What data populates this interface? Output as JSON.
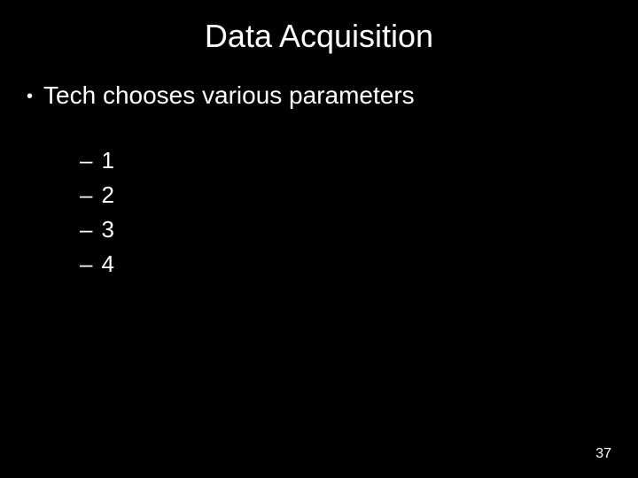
{
  "slide": {
    "title": "Data Acquisition",
    "main_bullet": "Tech chooses various parameters",
    "sub_items": [
      "1",
      "2",
      "3",
      "4"
    ],
    "page_number": "37",
    "background_color": "#000000",
    "text_color": "#ffffff",
    "title_fontsize": 36,
    "body_fontsize": 28,
    "sub_fontsize": 26,
    "pagenum_fontsize": 16
  }
}
